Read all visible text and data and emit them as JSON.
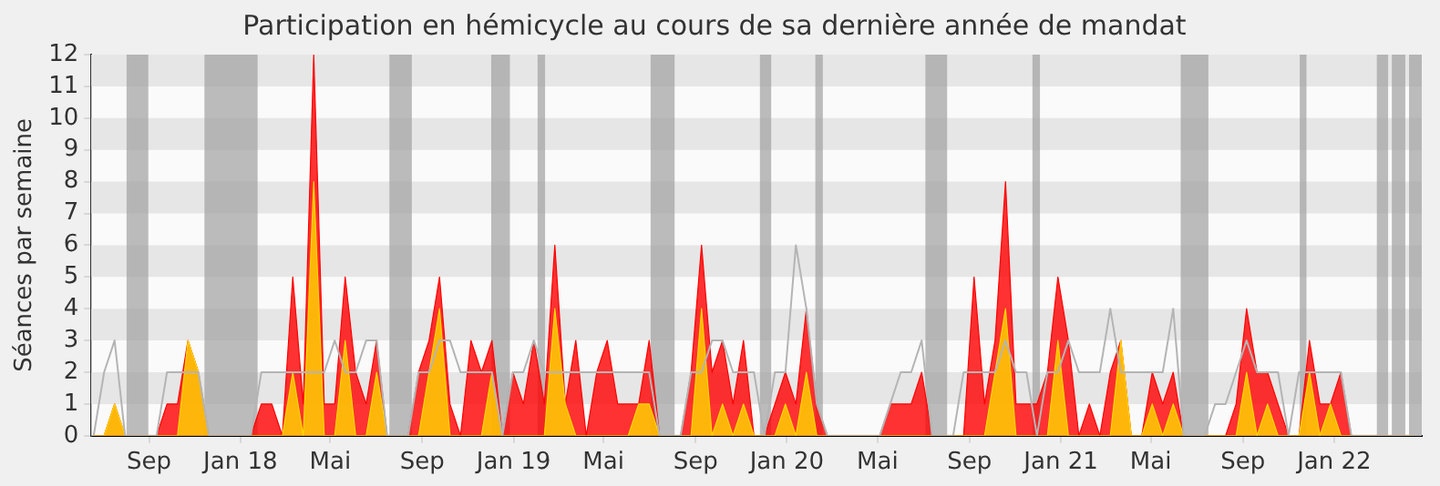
{
  "chart_data": {
    "type": "area",
    "title": "Participation en hémicycle au cours de sa dernière année de mandat",
    "ylabel": "Séances par semaine",
    "x": [
      "2017-06-19",
      "2017-07-03",
      "2017-07-17",
      "2017-07-31",
      "2017-08-14",
      "2017-08-28",
      "2017-09-11",
      "2017-09-25",
      "2017-10-09",
      "2017-10-23",
      "2017-11-06",
      "2017-11-20",
      "2017-12-04",
      "2017-12-18",
      "2018-01-01",
      "2018-01-15",
      "2018-01-29",
      "2018-02-12",
      "2018-02-26",
      "2018-03-12",
      "2018-03-26",
      "2018-04-09",
      "2018-04-23",
      "2018-05-07",
      "2018-05-21",
      "2018-06-04",
      "2018-06-18",
      "2018-07-02",
      "2018-07-16",
      "2018-07-30",
      "2018-08-13",
      "2018-08-27",
      "2018-09-10",
      "2018-09-24",
      "2018-10-08",
      "2018-10-22",
      "2018-11-05",
      "2018-11-19",
      "2018-12-03",
      "2018-12-17",
      "2018-12-31",
      "2019-01-14",
      "2019-01-28",
      "2019-02-11",
      "2019-02-25",
      "2019-03-11",
      "2019-03-25",
      "2019-04-08",
      "2019-04-22",
      "2019-05-06",
      "2019-05-20",
      "2019-06-03",
      "2019-06-17",
      "2019-07-01",
      "2019-07-15",
      "2019-07-29",
      "2019-08-12",
      "2019-08-26",
      "2019-09-09",
      "2019-09-23",
      "2019-10-07",
      "2019-10-21",
      "2019-11-04",
      "2019-11-18",
      "2019-12-02",
      "2019-12-16",
      "2019-12-30",
      "2020-01-13",
      "2020-01-27",
      "2020-02-10",
      "2020-02-24",
      "2020-03-09",
      "2020-03-23",
      "2020-04-06",
      "2020-04-20",
      "2020-05-04",
      "2020-05-18",
      "2020-06-01",
      "2020-06-15",
      "2020-06-29",
      "2020-07-13",
      "2020-07-27",
      "2020-08-10",
      "2020-08-24",
      "2020-09-07",
      "2020-09-21",
      "2020-10-05",
      "2020-10-19",
      "2020-11-02",
      "2020-11-16",
      "2020-11-30",
      "2020-12-14",
      "2020-12-28",
      "2021-01-11",
      "2021-01-25",
      "2021-02-08",
      "2021-02-22",
      "2021-03-08",
      "2021-03-22",
      "2021-04-05",
      "2021-04-19",
      "2021-05-03",
      "2021-05-17",
      "2021-05-31",
      "2021-06-14",
      "2021-06-28",
      "2021-07-12",
      "2021-07-26",
      "2021-08-09",
      "2021-08-23",
      "2021-09-06",
      "2021-09-20",
      "2021-10-04",
      "2021-10-18",
      "2021-11-01",
      "2021-11-15",
      "2021-11-29",
      "2021-12-13",
      "2021-12-27",
      "2022-01-10",
      "2022-01-24",
      "2022-02-07",
      "2022-02-21",
      "2022-03-07",
      "2022-03-21",
      "2022-04-04",
      "2022-04-18"
    ],
    "series": [
      {
        "type": "area",
        "color": "#ff0000",
        "values": [
          0,
          0,
          1,
          0,
          0,
          0,
          0,
          1,
          1,
          3,
          2,
          0,
          0,
          0,
          0,
          0,
          1,
          1,
          0,
          5,
          1,
          12,
          1,
          1,
          5,
          2,
          1,
          3,
          0,
          0,
          0,
          2,
          3,
          5,
          1,
          0,
          3,
          2,
          3,
          0,
          2,
          1,
          3,
          1,
          6,
          1,
          3,
          0,
          2,
          3,
          1,
          1,
          1,
          3,
          0,
          0,
          0,
          2,
          6,
          2,
          3,
          1,
          3,
          0,
          0,
          1,
          2,
          1,
          4,
          1,
          0,
          0,
          0,
          0,
          0,
          0,
          1,
          1,
          1,
          2,
          0,
          0,
          0,
          0,
          5,
          1,
          3,
          8,
          1,
          1,
          1,
          2,
          5,
          3,
          0,
          1,
          0,
          2,
          3,
          0,
          0,
          2,
          1,
          2,
          0,
          0,
          0,
          0,
          0,
          1,
          4,
          2,
          2,
          1,
          0,
          0,
          3,
          1,
          1,
          2,
          0,
          0,
          0,
          0,
          0,
          0,
          0
        ]
      },
      {
        "type": "area",
        "color": "#ffd700",
        "values": [
          0,
          0,
          1,
          0,
          0,
          0,
          0,
          0,
          0,
          3,
          2,
          0,
          0,
          0,
          0,
          0,
          0,
          0,
          0,
          2,
          0,
          8,
          0,
          0,
          3,
          0,
          0,
          2,
          0,
          0,
          0,
          0,
          2,
          4,
          0,
          0,
          0,
          0,
          2,
          0,
          0,
          0,
          0,
          0,
          4,
          1,
          0,
          0,
          0,
          0,
          0,
          0,
          1,
          1,
          0,
          0,
          0,
          0,
          4,
          0,
          1,
          0,
          1,
          0,
          0,
          0,
          1,
          0,
          2,
          0,
          0,
          0,
          0,
          0,
          0,
          0,
          0,
          0,
          0,
          0,
          0,
          0,
          0,
          0,
          0,
          0,
          2,
          4,
          0,
          0,
          0,
          0,
          3,
          0,
          0,
          0,
          0,
          0,
          3,
          0,
          0,
          1,
          0,
          1,
          0,
          0,
          0,
          0,
          0,
          0,
          2,
          0,
          1,
          0,
          0,
          0,
          2,
          0,
          1,
          0,
          0,
          0,
          0,
          0,
          0,
          0,
          0
        ]
      },
      {
        "type": "line",
        "color": "#b4b4b4",
        "values": [
          0,
          2,
          3,
          0,
          0,
          0,
          0,
          2,
          2,
          2,
          2,
          0,
          0,
          0,
          0,
          0,
          2,
          2,
          2,
          2,
          2,
          2,
          2,
          3,
          2,
          2,
          3,
          3,
          0,
          0,
          0,
          2,
          2,
          3,
          3,
          2,
          2,
          2,
          2,
          0,
          2,
          2,
          3,
          2,
          2,
          2,
          2,
          2,
          2,
          2,
          2,
          2,
          2,
          2,
          0,
          0,
          0,
          2,
          2,
          3,
          3,
          2,
          2,
          2,
          0,
          2,
          2,
          6,
          4,
          1,
          0,
          0,
          0,
          0,
          0,
          0,
          1,
          2,
          2,
          3,
          0,
          0,
          0,
          2,
          2,
          2,
          2,
          3,
          2,
          2,
          0,
          2,
          2,
          3,
          2,
          2,
          2,
          4,
          2,
          2,
          2,
          2,
          2,
          4,
          0,
          0,
          0,
          1,
          1,
          2,
          3,
          2,
          2,
          2,
          0,
          2,
          2,
          2,
          2,
          2,
          0,
          0,
          0,
          0,
          0,
          0,
          0
        ]
      }
    ],
    "xlim": [
      "2017-06-16",
      "2022-04-28"
    ],
    "xticks": [
      {
        "value": "2017-09-01",
        "label": "Sep"
      },
      {
        "value": "2018-01-01",
        "label": "Jan 18"
      },
      {
        "value": "2018-05-01",
        "label": "Mai"
      },
      {
        "value": "2018-09-01",
        "label": "Sep"
      },
      {
        "value": "2019-01-01",
        "label": "Jan 19"
      },
      {
        "value": "2019-05-01",
        "label": "Mai"
      },
      {
        "value": "2019-09-01",
        "label": "Sep"
      },
      {
        "value": "2020-01-01",
        "label": "Jan 20"
      },
      {
        "value": "2020-05-01",
        "label": "Mai"
      },
      {
        "value": "2020-09-01",
        "label": "Sep"
      },
      {
        "value": "2021-01-01",
        "label": "Jan 21"
      },
      {
        "value": "2021-05-01",
        "label": "Mai"
      },
      {
        "value": "2021-09-01",
        "label": "Sep"
      },
      {
        "value": "2022-01-01",
        "label": "Jan 22"
      }
    ],
    "ylim": [
      0,
      12
    ],
    "yticks": [
      0,
      1,
      2,
      3,
      4,
      5,
      6,
      7,
      8,
      9,
      10,
      11,
      12
    ],
    "bands": [
      {
        "axis": "y",
        "from": 1,
        "to": 2,
        "color": "#e6e6e6"
      },
      {
        "axis": "y",
        "from": 3,
        "to": 4,
        "color": "#e6e6e6"
      },
      {
        "axis": "y",
        "from": 5,
        "to": 6,
        "color": "#e6e6e6"
      },
      {
        "axis": "y",
        "from": 7,
        "to": 8,
        "color": "#e6e6e6"
      },
      {
        "axis": "y",
        "from": 9,
        "to": 10,
        "color": "#e6e6e6"
      },
      {
        "axis": "y",
        "from": 11,
        "to": 12,
        "color": "#e6e6e6"
      },
      {
        "axis": "x",
        "from": "2017-08-02",
        "to": "2017-08-31",
        "color": "#a0a0a0"
      },
      {
        "axis": "x",
        "from": "2017-11-14",
        "to": "2018-01-24",
        "color": "#a0a0a0"
      },
      {
        "axis": "x",
        "from": "2018-07-19",
        "to": "2018-08-18",
        "color": "#a0a0a0"
      },
      {
        "axis": "x",
        "from": "2018-12-02",
        "to": "2018-12-27",
        "color": "#a0a0a0"
      },
      {
        "axis": "x",
        "from": "2019-02-02",
        "to": "2019-02-12",
        "color": "#a0a0a0"
      },
      {
        "axis": "x",
        "from": "2019-07-03",
        "to": "2019-08-04",
        "color": "#a0a0a0"
      },
      {
        "axis": "x",
        "from": "2019-11-26",
        "to": "2019-12-11",
        "color": "#a0a0a0"
      },
      {
        "axis": "x",
        "from": "2020-02-08",
        "to": "2020-02-18",
        "color": "#a0a0a0"
      },
      {
        "axis": "x",
        "from": "2020-07-04",
        "to": "2020-08-02",
        "color": "#a0a0a0"
      },
      {
        "axis": "x",
        "from": "2020-11-24",
        "to": "2020-12-04",
        "color": "#a0a0a0"
      },
      {
        "axis": "x",
        "from": "2021-06-10",
        "to": "2021-07-17",
        "color": "#a0a0a0"
      },
      {
        "axis": "x",
        "from": "2021-11-16",
        "to": "2021-11-25",
        "color": "#a0a0a0"
      },
      {
        "axis": "x",
        "from": "2022-02-27",
        "to": "2022-03-14",
        "color": "#a0a0a0"
      },
      {
        "axis": "x",
        "from": "2022-03-19",
        "to": "2022-04-06",
        "color": "#a0a0a0"
      },
      {
        "axis": "x",
        "from": "2022-04-11",
        "to": "2022-04-28",
        "color": "#a0a0a0"
      }
    ],
    "grid": false,
    "legend": false
  }
}
